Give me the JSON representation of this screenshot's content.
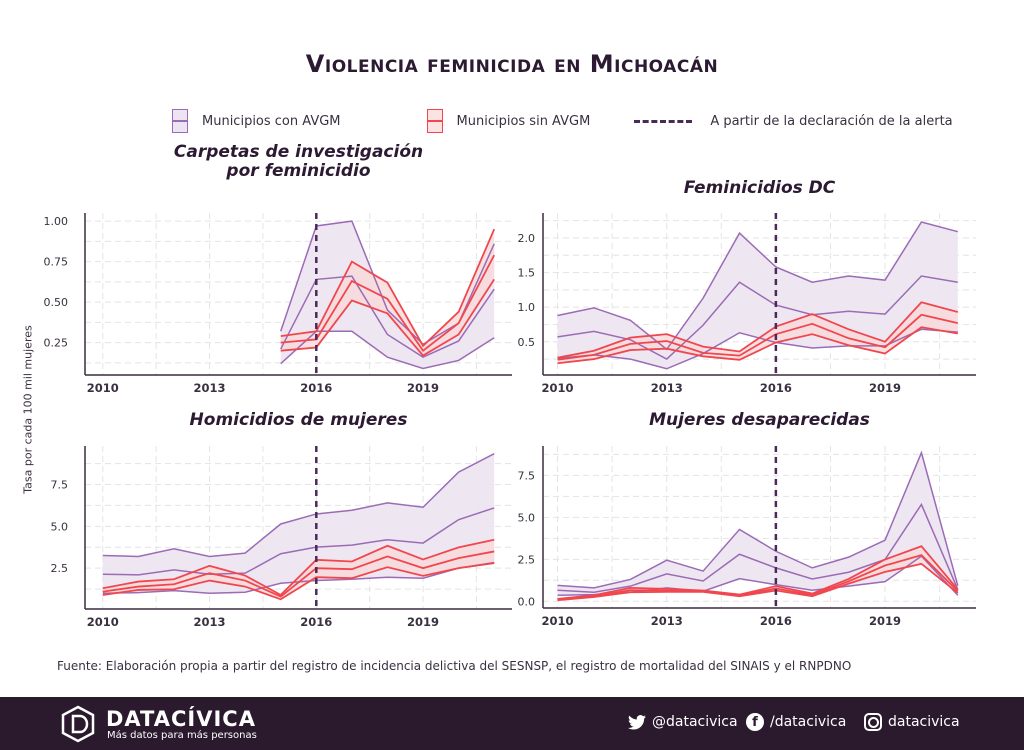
{
  "title": "Violencia feminicida en Michoacán",
  "legend": {
    "con": "Municipios con AVGM",
    "sin": "Municipios sin AVGM",
    "alerta": "A partir de la declaración de la alerta"
  },
  "ylabel": "Tasa por cada 100 mil mujeres",
  "source": "Fuente: Elaboración propia a partir del registro de incidencia delictiva del SESNSP, el registro de mortalidad del SINAIS y el RNPDNO",
  "footer": {
    "brand": "DATACÍVICA",
    "tagline": "Más datos para más personas",
    "twitter": "@datacivica",
    "facebook": "/datacivica",
    "instagram": "datacivica",
    "icons": [
      "datacivica-logo-icon",
      "twitter-icon",
      "facebook-icon",
      "instagram-icon"
    ]
  },
  "colors": {
    "con": "#9b6bb5",
    "con_fill": "#ece4f1",
    "sin": "#f0474f",
    "sin_fill": "#f9d9da",
    "alerta": "#4a2a5a",
    "text": "#2c1a33",
    "footer_bg": "#2b1a2e"
  },
  "chart_data": [
    {
      "type": "area",
      "title": "Carpetas de investigación\npor feminicidio",
      "x": [
        2015,
        2016,
        2017,
        2018,
        2019,
        2020,
        2021
      ],
      "xticks": [
        "2010",
        "2013",
        "2016",
        "2019"
      ],
      "yticks": [
        "0.25",
        "0.50",
        "0.75",
        "1.00"
      ],
      "ylim": [
        0.05,
        1.05
      ],
      "xlim": [
        2009.5,
        2021.5
      ],
      "grid": true,
      "alert_year": 2016,
      "series": [
        {
          "name": "Municipios con AVGM",
          "upper": [
            0.32,
            0.97,
            1.0,
            0.45,
            0.24,
            0.37,
            0.86
          ],
          "mid": [
            0.21,
            0.64,
            0.66,
            0.3,
            0.16,
            0.26,
            0.58
          ],
          "lower": [
            0.12,
            0.32,
            0.32,
            0.16,
            0.09,
            0.14,
            0.28
          ]
        },
        {
          "name": "Municipios sin AVGM",
          "upper": [
            0.29,
            0.32,
            0.75,
            0.62,
            0.23,
            0.44,
            0.95
          ],
          "mid": [
            0.25,
            0.27,
            0.63,
            0.52,
            0.2,
            0.37,
            0.79
          ],
          "lower": [
            0.2,
            0.22,
            0.51,
            0.43,
            0.17,
            0.3,
            0.64
          ]
        }
      ]
    },
    {
      "type": "area",
      "title": "Feminicidios DC",
      "x": [
        2010,
        2011,
        2012,
        2013,
        2014,
        2015,
        2016,
        2017,
        2018,
        2019,
        2020,
        2021
      ],
      "xticks": [
        "2010",
        "2013",
        "2016",
        "2019"
      ],
      "yticks": [
        "0.5",
        "1.0",
        "1.5",
        "2.0"
      ],
      "ylim": [
        0.02,
        2.36
      ],
      "xlim": [
        2009.6,
        2021.5
      ],
      "grid": true,
      "alert_year": 2016,
      "series": [
        {
          "name": "Municipios con AVGM",
          "upper": [
            0.88,
            0.99,
            0.81,
            0.39,
            1.13,
            2.07,
            1.58,
            1.36,
            1.45,
            1.39,
            2.23,
            2.09
          ],
          "mid": [
            0.57,
            0.65,
            0.53,
            0.25,
            0.74,
            1.36,
            1.03,
            0.89,
            0.94,
            0.9,
            1.45,
            1.36
          ],
          "lower": [
            0.26,
            0.31,
            0.25,
            0.11,
            0.33,
            0.63,
            0.49,
            0.41,
            0.44,
            0.44,
            0.68,
            0.64
          ]
        },
        {
          "name": "Municipios sin AVGM",
          "upper": [
            0.27,
            0.37,
            0.56,
            0.61,
            0.43,
            0.36,
            0.72,
            0.9,
            0.68,
            0.5,
            1.07,
            0.93
          ],
          "mid": [
            0.24,
            0.31,
            0.47,
            0.51,
            0.34,
            0.3,
            0.61,
            0.76,
            0.55,
            0.42,
            0.89,
            0.77
          ],
          "lower": [
            0.19,
            0.25,
            0.38,
            0.4,
            0.29,
            0.24,
            0.49,
            0.61,
            0.45,
            0.33,
            0.71,
            0.62
          ]
        }
      ]
    },
    {
      "type": "area",
      "title": "Homicidios de mujeres",
      "x": [
        2010,
        2011,
        2012,
        2013,
        2014,
        2015,
        2016,
        2017,
        2018,
        2019,
        2020,
        2021
      ],
      "xticks": [
        "2010",
        "2013",
        "2016",
        "2019"
      ],
      "yticks": [
        "2.5",
        "5.0",
        "7.5"
      ],
      "ylim": [
        0.06,
        9.8
      ],
      "xlim": [
        2009.5,
        2021.5
      ],
      "grid": true,
      "alert_year": 2016,
      "series": [
        {
          "name": "Municipios con AVGM",
          "upper": [
            3.26,
            3.2,
            3.66,
            3.2,
            3.4,
            5.14,
            5.74,
            5.96,
            6.4,
            6.14,
            8.24,
            9.34
          ],
          "mid": [
            2.14,
            2.1,
            2.4,
            2.14,
            2.2,
            3.36,
            3.76,
            3.88,
            4.2,
            4.0,
            5.4,
            6.1
          ],
          "lower": [
            1.0,
            1.04,
            1.16,
            1.0,
            1.06,
            1.6,
            1.76,
            1.84,
            1.96,
            1.9,
            2.5,
            2.84
          ]
        },
        {
          "name": "Municipios sin AVGM",
          "upper": [
            1.3,
            1.7,
            1.84,
            2.64,
            2.06,
            0.9,
            3.0,
            2.9,
            3.84,
            3.02,
            3.74,
            4.2
          ],
          "mid": [
            1.1,
            1.4,
            1.54,
            2.2,
            1.76,
            0.8,
            2.5,
            2.44,
            3.2,
            2.5,
            3.1,
            3.5
          ],
          "lower": [
            0.9,
            1.2,
            1.24,
            1.76,
            1.4,
            0.64,
            1.96,
            1.9,
            2.56,
            2.04,
            2.5,
            2.8
          ]
        }
      ]
    },
    {
      "type": "area",
      "title": "Mujeres desaparecidas",
      "x": [
        2010,
        2011,
        2012,
        2013,
        2014,
        2015,
        2016,
        2017,
        2018,
        2019,
        2020,
        2021
      ],
      "xticks": [
        "2010",
        "2013",
        "2016",
        "2019"
      ],
      "yticks": [
        "0.0",
        "2.5",
        "5.0",
        "7.5"
      ],
      "ylim": [
        -0.4,
        9.25
      ],
      "xlim": [
        2009.6,
        2021.5
      ],
      "grid": true,
      "alert_year": 2016,
      "series": [
        {
          "name": "Municipios con AVGM",
          "upper": [
            0.95,
            0.8,
            1.3,
            2.45,
            1.8,
            4.28,
            2.98,
            1.99,
            2.63,
            3.64,
            8.85,
            0.93
          ],
          "mid": [
            0.66,
            0.54,
            0.9,
            1.63,
            1.21,
            2.8,
            1.99,
            1.33,
            1.73,
            2.49,
            5.77,
            0.7
          ],
          "lower": [
            0.36,
            0.4,
            0.54,
            0.8,
            0.6,
            1.35,
            0.99,
            0.66,
            0.9,
            1.17,
            2.69,
            0.36
          ]
        },
        {
          "name": "Municipios sin AVGM",
          "upper": [
            0.14,
            0.36,
            0.8,
            0.74,
            0.64,
            0.4,
            0.9,
            0.46,
            1.33,
            2.49,
            3.28,
            0.7
          ],
          "mid": [
            0.1,
            0.3,
            0.66,
            0.64,
            0.6,
            0.34,
            0.76,
            0.38,
            1.19,
            2.13,
            2.75,
            0.6
          ],
          "lower": [
            0.06,
            0.26,
            0.54,
            0.56,
            0.56,
            0.3,
            0.64,
            0.3,
            1.05,
            1.75,
            2.23,
            0.5
          ]
        }
      ]
    }
  ]
}
